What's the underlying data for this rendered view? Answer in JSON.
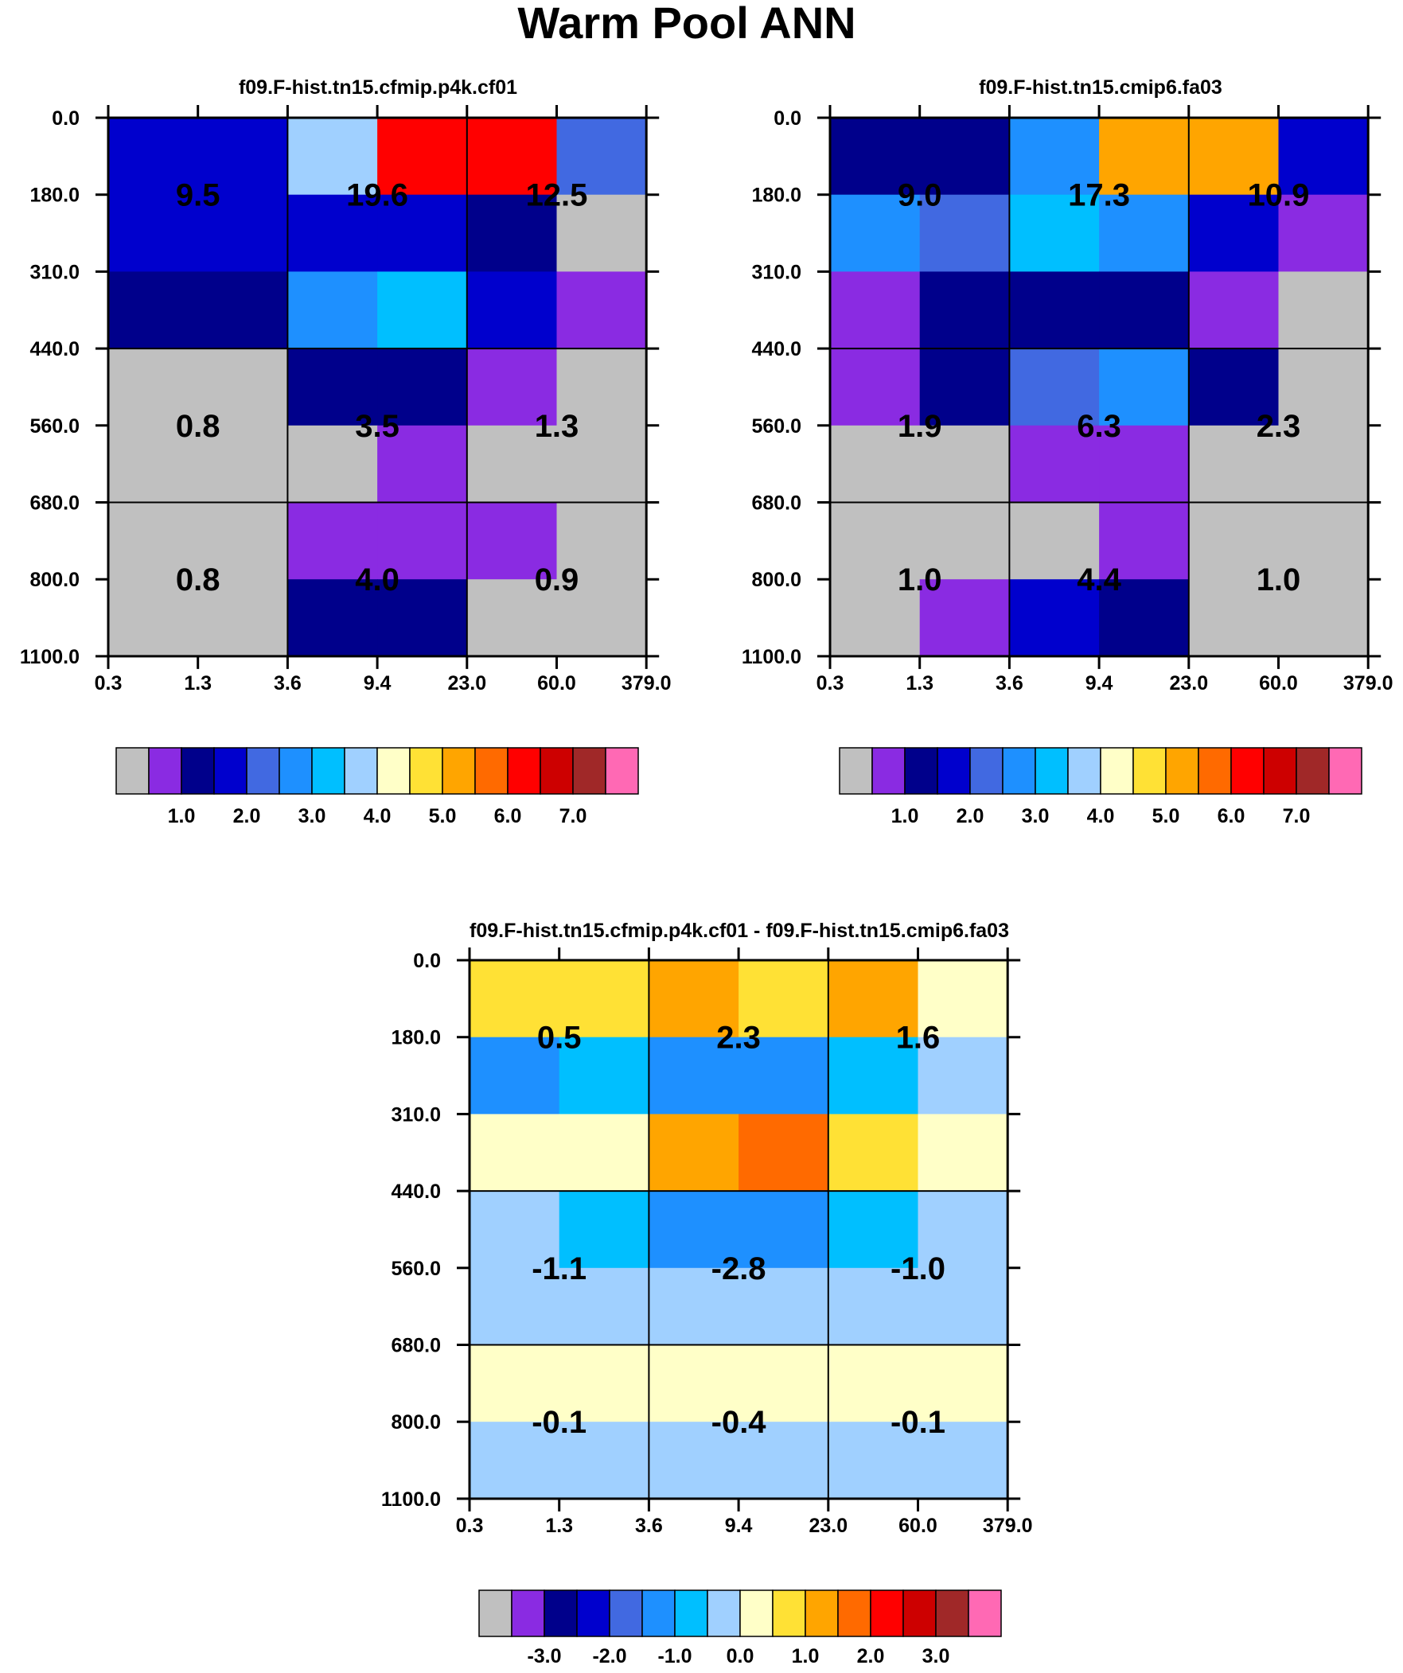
{
  "title": "Warm Pool ANN",
  "chart_data": [
    {
      "type": "heatmap",
      "title": "f09.F-hist.tn15.cfmip.p4k.cf01",
      "x_ticks": [
        "0.3",
        "1.3",
        "3.6",
        "9.4",
        "23.0",
        "60.0",
        "379.0"
      ],
      "y_ticks": [
        "0.0",
        "180.0",
        "310.0",
        "440.0",
        "560.0",
        "680.0",
        "800.0",
        "1100.0"
      ],
      "cell_colors": [
        [
          "#0000cd",
          "#0000cd",
          "#a0d0ff",
          "#ff0000",
          "#ff0000",
          "#4169e1"
        ],
        [
          "#0000cd",
          "#0000cd",
          "#0000cd",
          "#0000cd",
          "#00008b",
          "#c0c0c0"
        ],
        [
          "#00008b",
          "#00008b",
          "#1e90ff",
          "#00bfff",
          "#0000cd",
          "#8a2be2"
        ],
        [
          "#c0c0c0",
          "#c0c0c0",
          "#00008b",
          "#00008b",
          "#8a2be2",
          "#c0c0c0"
        ],
        [
          "#c0c0c0",
          "#c0c0c0",
          "#c0c0c0",
          "#8a2be2",
          "#c0c0c0",
          "#c0c0c0"
        ],
        [
          "#c0c0c0",
          "#c0c0c0",
          "#8a2be2",
          "#8a2be2",
          "#8a2be2",
          "#c0c0c0"
        ],
        [
          "#c0c0c0",
          "#c0c0c0",
          "#00008b",
          "#00008b",
          "#c0c0c0",
          "#c0c0c0"
        ]
      ],
      "summary_labels": [
        [
          "9.5",
          "19.6",
          "12.5"
        ],
        [
          "0.8",
          "3.5",
          "1.3"
        ],
        [
          "0.8",
          "4.0",
          "0.9"
        ]
      ],
      "colorbar": {
        "colors": [
          "#c0c0c0",
          "#8a2be2",
          "#00008b",
          "#0000cd",
          "#4169e1",
          "#1e90ff",
          "#00bfff",
          "#a0d0ff",
          "#ffffc8",
          "#ffe135",
          "#ffa500",
          "#ff6a00",
          "#ff0000",
          "#cd0000",
          "#a02828",
          "#ff69b4"
        ],
        "labels": [
          "1.0",
          "2.0",
          "3.0",
          "4.0",
          "5.0",
          "6.0",
          "7.0"
        ]
      }
    },
    {
      "type": "heatmap",
      "title": "f09.F-hist.tn15.cmip6.fa03",
      "x_ticks": [
        "0.3",
        "1.3",
        "3.6",
        "9.4",
        "23.0",
        "60.0",
        "379.0"
      ],
      "y_ticks": [
        "0.0",
        "180.0",
        "310.0",
        "440.0",
        "560.0",
        "680.0",
        "800.0",
        "1100.0"
      ],
      "cell_colors": [
        [
          "#00008b",
          "#00008b",
          "#1e90ff",
          "#ffa500",
          "#ffa500",
          "#0000cd"
        ],
        [
          "#1e90ff",
          "#4169e1",
          "#00bfff",
          "#1e90ff",
          "#0000cd",
          "#8a2be2"
        ],
        [
          "#8a2be2",
          "#00008b",
          "#00008b",
          "#00008b",
          "#8a2be2",
          "#c0c0c0"
        ],
        [
          "#8a2be2",
          "#00008b",
          "#4169e1",
          "#1e90ff",
          "#00008b",
          "#c0c0c0"
        ],
        [
          "#c0c0c0",
          "#c0c0c0",
          "#8a2be2",
          "#8a2be2",
          "#c0c0c0",
          "#c0c0c0"
        ],
        [
          "#c0c0c0",
          "#c0c0c0",
          "#c0c0c0",
          "#8a2be2",
          "#c0c0c0",
          "#c0c0c0"
        ],
        [
          "#c0c0c0",
          "#8a2be2",
          "#0000cd",
          "#00008b",
          "#c0c0c0",
          "#c0c0c0"
        ]
      ],
      "summary_labels": [
        [
          "9.0",
          "17.3",
          "10.9"
        ],
        [
          "1.9",
          "6.3",
          "2.3"
        ],
        [
          "1.0",
          "4.4",
          "1.0"
        ]
      ],
      "colorbar": {
        "colors": [
          "#c0c0c0",
          "#8a2be2",
          "#00008b",
          "#0000cd",
          "#4169e1",
          "#1e90ff",
          "#00bfff",
          "#a0d0ff",
          "#ffffc8",
          "#ffe135",
          "#ffa500",
          "#ff6a00",
          "#ff0000",
          "#cd0000",
          "#a02828",
          "#ff69b4"
        ],
        "labels": [
          "1.0",
          "2.0",
          "3.0",
          "4.0",
          "5.0",
          "6.0",
          "7.0"
        ]
      }
    },
    {
      "type": "heatmap",
      "title": "f09.F-hist.tn15.cfmip.p4k.cf01 - f09.F-hist.tn15.cmip6.fa03",
      "x_ticks": [
        "0.3",
        "1.3",
        "3.6",
        "9.4",
        "23.0",
        "60.0",
        "379.0"
      ],
      "y_ticks": [
        "0.0",
        "180.0",
        "310.0",
        "440.0",
        "560.0",
        "680.0",
        "800.0",
        "1100.0"
      ],
      "cell_colors": [
        [
          "#ffe135",
          "#ffe135",
          "#ffa500",
          "#ffe135",
          "#ffa500",
          "#ffffc8"
        ],
        [
          "#1e90ff",
          "#00bfff",
          "#1e90ff",
          "#1e90ff",
          "#00bfff",
          "#a0d0ff"
        ],
        [
          "#ffffc8",
          "#ffffc8",
          "#ffa500",
          "#ff6a00",
          "#ffe135",
          "#ffffc8"
        ],
        [
          "#a0d0ff",
          "#00bfff",
          "#1e90ff",
          "#1e90ff",
          "#00bfff",
          "#a0d0ff"
        ],
        [
          "#a0d0ff",
          "#a0d0ff",
          "#a0d0ff",
          "#a0d0ff",
          "#a0d0ff",
          "#a0d0ff"
        ],
        [
          "#ffffc8",
          "#ffffc8",
          "#ffffc8",
          "#ffffc8",
          "#ffffc8",
          "#ffffc8"
        ],
        [
          "#a0d0ff",
          "#a0d0ff",
          "#a0d0ff",
          "#a0d0ff",
          "#a0d0ff",
          "#a0d0ff"
        ]
      ],
      "summary_labels": [
        [
          "0.5",
          "2.3",
          "1.6"
        ],
        [
          "-1.1",
          "-2.8",
          "-1.0"
        ],
        [
          "-0.1",
          "-0.4",
          "-0.1"
        ]
      ],
      "colorbar": {
        "colors": [
          "#c0c0c0",
          "#8a2be2",
          "#00008b",
          "#0000cd",
          "#4169e1",
          "#1e90ff",
          "#00bfff",
          "#a0d0ff",
          "#ffffc8",
          "#ffe135",
          "#ffa500",
          "#ff6a00",
          "#ff0000",
          "#cd0000",
          "#a02828",
          "#ff69b4"
        ],
        "labels": [
          "-3.0",
          "-2.0",
          "-1.0",
          "0.0",
          "1.0",
          "2.0",
          "3.0"
        ]
      }
    }
  ]
}
